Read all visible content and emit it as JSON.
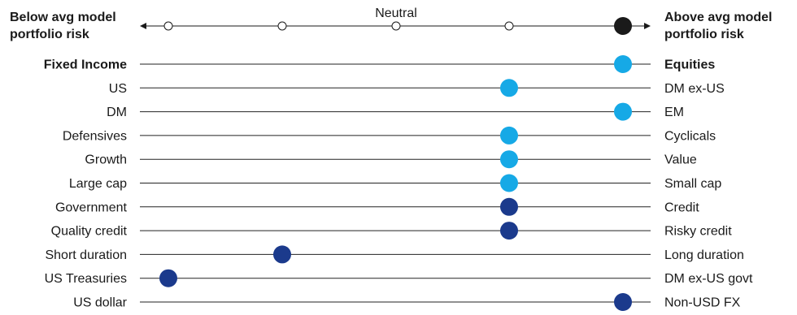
{
  "chart_data": {
    "type": "scatter",
    "title": "",
    "scale": {
      "left_label": [
        "Below avg model",
        "portfolio risk"
      ],
      "right_label": [
        "Above avg model",
        "portfolio risk"
      ],
      "center_label": "Neutral",
      "positions": [
        1,
        2,
        3,
        4,
        5
      ],
      "neutral_position": 3,
      "selected_position": 5
    },
    "rows": [
      {
        "left": "Fixed Income",
        "right": "Equities",
        "position": 5,
        "color": "#16a9e6",
        "bold": true
      },
      {
        "left": "US",
        "right": "DM ex-US",
        "position": 4,
        "color": "#16a9e6",
        "bold": false
      },
      {
        "left": "DM",
        "right": "EM",
        "position": 5,
        "color": "#16a9e6",
        "bold": false
      },
      {
        "left": "Defensives",
        "right": "Cyclicals",
        "position": 4,
        "color": "#16a9e6",
        "bold": false
      },
      {
        "left": "Growth",
        "right": "Value",
        "position": 4,
        "color": "#16a9e6",
        "bold": false
      },
      {
        "left": "Large cap",
        "right": "Small cap",
        "position": 4,
        "color": "#16a9e6",
        "bold": false
      },
      {
        "left": "Government",
        "right": "Credit",
        "position": 4,
        "color": "#1b3a8c",
        "bold": false
      },
      {
        "left": "Quality credit",
        "right": "Risky credit",
        "position": 4,
        "color": "#1b3a8c",
        "bold": false
      },
      {
        "left": "Short duration",
        "right": "Long duration",
        "position": 2,
        "color": "#1b3a8c",
        "bold": false
      },
      {
        "left": "US Treasuries",
        "right": "DM ex-US govt",
        "position": 1,
        "color": "#1b3a8c",
        "bold": false
      },
      {
        "left": "US dollar",
        "right": "Non-USD FX",
        "position": 5,
        "color": "#1b3a8c",
        "bold": false
      }
    ],
    "colors": {
      "equity_blue": "#16a9e6",
      "fixed_income_navy": "#1b3a8c",
      "selected_black": "#1a1a1a"
    }
  }
}
